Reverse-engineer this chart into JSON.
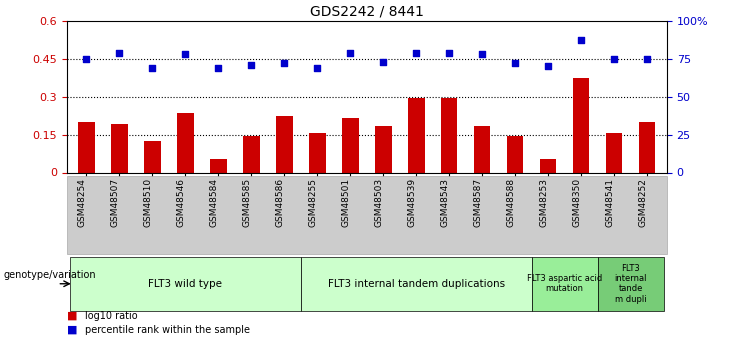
{
  "title": "GDS2242 / 8441",
  "samples": [
    "GSM48254",
    "GSM48507",
    "GSM48510",
    "GSM48546",
    "GSM48584",
    "GSM48585",
    "GSM48586",
    "GSM48255",
    "GSM48501",
    "GSM48503",
    "GSM48539",
    "GSM48543",
    "GSM48587",
    "GSM48588",
    "GSM48253",
    "GSM48350",
    "GSM48541",
    "GSM48252"
  ],
  "log10_ratio": [
    0.2,
    0.19,
    0.125,
    0.235,
    0.055,
    0.145,
    0.225,
    0.155,
    0.215,
    0.185,
    0.295,
    0.295,
    0.185,
    0.145,
    0.055,
    0.375,
    0.155,
    0.2
  ],
  "percentile_rank": [
    75,
    79,
    69,
    78,
    69,
    71,
    72,
    69,
    79,
    73,
    79,
    79,
    78,
    72,
    70,
    87,
    75,
    75
  ],
  "group_colors": [
    "#ccffcc",
    "#ccffcc",
    "#99ee99",
    "#77cc77"
  ],
  "groups": [
    {
      "label": "FLT3 wild type",
      "start": 0,
      "end": 7
    },
    {
      "label": "FLT3 internal tandem duplications",
      "start": 7,
      "end": 14
    },
    {
      "label": "FLT3 aspartic acid\nmutation",
      "start": 14,
      "end": 16
    },
    {
      "label": "FLT3\ninternal\ntande\nm dupli",
      "start": 16,
      "end": 18
    }
  ],
  "bar_color": "#cc0000",
  "dot_color": "#0000cc",
  "ylim_left": [
    0,
    0.6
  ],
  "ylim_right": [
    0,
    100
  ],
  "yticks_left": [
    0,
    0.15,
    0.3,
    0.45,
    0.6
  ],
  "yticks_right": [
    0,
    25,
    50,
    75,
    100
  ],
  "ytick_labels_left": [
    "0",
    "0.15",
    "0.3",
    "0.45",
    "0.6"
  ],
  "ytick_labels_right": [
    "0",
    "25",
    "50",
    "75",
    "100%"
  ],
  "hlines": [
    0.15,
    0.3,
    0.45
  ],
  "legend_log10": "log10 ratio",
  "legend_pct": "percentile rank within the sample",
  "genotype_label": "genotype/variation",
  "tick_bg_color": "#cccccc",
  "title_fontsize": 10
}
